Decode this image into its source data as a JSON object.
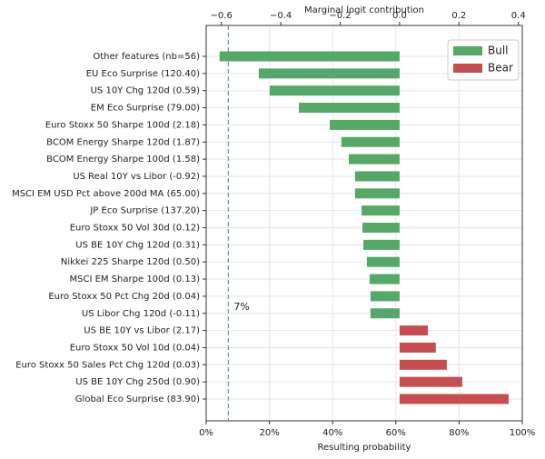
{
  "chart_data": {
    "type": "barh",
    "xlabel": "Marginal logit contribution",
    "x2label": "Resulting probability",
    "categories": [
      "Other features (nb=56)",
      "EU Eco Surprise (120.40)",
      "US 10Y Chg 120d (0.59)",
      "EM Eco Surprise (79.00)",
      "Euro Stoxx 50 Sharpe 100d (2.18)",
      "BCOM Energy Sharpe 120d (1.87)",
      "BCOM Energy Sharpe 100d (1.58)",
      "US Real 10Y vs Libor (-0.92)",
      "MSCI EM USD Pct above 200d MA (65.00)",
      "JP Eco Surprise (137.20)",
      "Euro Stoxx 50 Vol 30d (0.12)",
      "US BE 10Y Chg 120d (0.31)",
      "Nikkei 225 Sharpe 120d (0.50)",
      "MSCI EM Sharpe 100d (0.13)",
      "Euro Stoxx 50 Pct Chg 20d (0.04)",
      "US Libor Chg 120d (-0.11)",
      "US BE 10Y vs Libor (2.17)",
      "Euro Stoxx 50 Vol 10d (0.04)",
      "Euro Stoxx 50 Sales Pct Chg 120d (0.03)",
      "US BE 10Y Chg 250d (0.90)",
      "Global Eco Surprise (83.90)"
    ],
    "series": [
      {
        "name": "Bull",
        "color": "#55a868",
        "values": [
          -0.606,
          -0.474,
          -0.437,
          -0.339,
          -0.235,
          -0.196,
          -0.171,
          -0.15,
          -0.15,
          -0.128,
          -0.125,
          -0.122,
          -0.11,
          -0.101,
          -0.098,
          -0.098,
          null,
          null,
          null,
          null,
          null
        ]
      },
      {
        "name": "Bear",
        "color": "#c44e52",
        "values": [
          null,
          null,
          null,
          null,
          null,
          null,
          null,
          null,
          null,
          null,
          null,
          null,
          null,
          null,
          null,
          null,
          0.095,
          0.122,
          0.159,
          0.211,
          0.367
        ]
      }
    ],
    "xlim": [
      -0.651,
      0.413
    ],
    "xticks": [
      {
        "value": -0.6,
        "label": "−0.6"
      },
      {
        "value": -0.4,
        "label": "−0.4"
      },
      {
        "value": -0.2,
        "label": "−0.2"
      },
      {
        "value": 0,
        "label": "0.0"
      },
      0.2,
      0.4
    ],
    "x2lim": [
      0,
      100
    ],
    "x2ticks": [
      {
        "value": 0,
        "label": "0%"
      },
      {
        "value": 20,
        "label": "20%"
      },
      {
        "value": 40,
        "label": "40%"
      },
      {
        "value": 60,
        "label": "60%"
      },
      {
        "value": 80,
        "label": "80%"
      },
      {
        "value": 100,
        "label": "100%"
      }
    ],
    "annotation": {
      "value": 7,
      "label": "7%",
      "color": "#55a868"
    },
    "grid": true,
    "legend": "upper right"
  }
}
